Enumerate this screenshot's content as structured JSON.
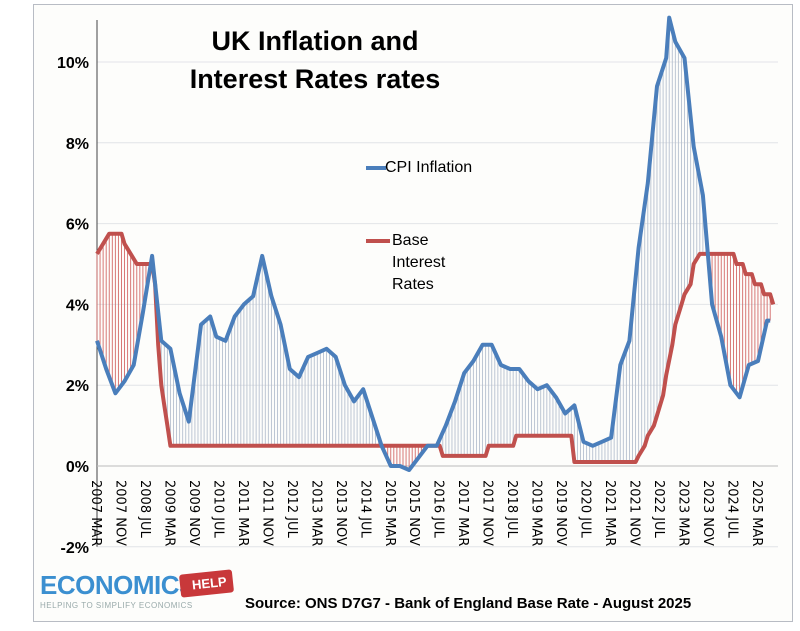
{
  "chart_data": {
    "type": "line",
    "title": "UK Inflation and Interest Rates rates",
    "xlabel": "",
    "ylabel": "",
    "ylim": [
      -2,
      11
    ],
    "y_ticks": [
      "-2%",
      "0%",
      "2%",
      "4%",
      "6%",
      "8%",
      "10%"
    ],
    "y_tick_values": [
      -2,
      0,
      2,
      4,
      6,
      8,
      10
    ],
    "x_ticks": [
      "2007 MAR",
      "2007 NOV",
      "2008 JUL",
      "2009 MAR",
      "2009 NOV",
      "2010 JUL",
      "2011 MAR",
      "2011 NOV",
      "2012 JUL",
      "2013 MAR",
      "2013 NOV",
      "2014 JUL",
      "2015 MAR",
      "2015 NOV",
      "2016 JUL",
      "2017 MAR",
      "2017 NOV",
      "2018 JUL",
      "2019 MAR",
      "2019 NOV",
      "2020 JUL",
      "2021 MAR",
      "2021 NOV",
      "2022 JUL",
      "2023 MAR",
      "2023 NOV",
      "2024 JUL",
      "2025 MAR"
    ],
    "grid": true,
    "legend_placement": "center-inside",
    "shading": "vertical hatching between series: red where base rate above CPI, blue-grey where CPI above base rate",
    "series": [
      {
        "name": "CPI Inflation",
        "color": "#4a7ebb",
        "points": [
          [
            "2007-03",
            3.1
          ],
          [
            "2007-06",
            2.4
          ],
          [
            "2007-09",
            1.8
          ],
          [
            "2007-12",
            2.1
          ],
          [
            "2008-03",
            2.5
          ],
          [
            "2008-06",
            3.8
          ],
          [
            "2008-09",
            5.2
          ],
          [
            "2008-12",
            3.1
          ],
          [
            "2009-03",
            2.9
          ],
          [
            "2009-06",
            1.8
          ],
          [
            "2009-09",
            1.1
          ],
          [
            "2009-12",
            2.9
          ],
          [
            "2010-01",
            3.5
          ],
          [
            "2010-04",
            3.7
          ],
          [
            "2010-06",
            3.2
          ],
          [
            "2010-09",
            3.1
          ],
          [
            "2010-12",
            3.7
          ],
          [
            "2011-03",
            4.0
          ],
          [
            "2011-06",
            4.2
          ],
          [
            "2011-09",
            5.2
          ],
          [
            "2011-12",
            4.2
          ],
          [
            "2012-03",
            3.5
          ],
          [
            "2012-06",
            2.4
          ],
          [
            "2012-09",
            2.2
          ],
          [
            "2012-12",
            2.7
          ],
          [
            "2013-03",
            2.8
          ],
          [
            "2013-06",
            2.9
          ],
          [
            "2013-09",
            2.7
          ],
          [
            "2013-12",
            2.0
          ],
          [
            "2014-03",
            1.6
          ],
          [
            "2014-06",
            1.9
          ],
          [
            "2014-09",
            1.2
          ],
          [
            "2014-12",
            0.5
          ],
          [
            "2015-03",
            0.0
          ],
          [
            "2015-06",
            0.0
          ],
          [
            "2015-09",
            -0.1
          ],
          [
            "2015-12",
            0.2
          ],
          [
            "2016-03",
            0.5
          ],
          [
            "2016-06",
            0.5
          ],
          [
            "2016-09",
            1.0
          ],
          [
            "2016-12",
            1.6
          ],
          [
            "2017-03",
            2.3
          ],
          [
            "2017-06",
            2.6
          ],
          [
            "2017-09",
            3.0
          ],
          [
            "2017-12",
            3.0
          ],
          [
            "2018-03",
            2.5
          ],
          [
            "2018-06",
            2.4
          ],
          [
            "2018-09",
            2.4
          ],
          [
            "2018-12",
            2.1
          ],
          [
            "2019-03",
            1.9
          ],
          [
            "2019-06",
            2.0
          ],
          [
            "2019-09",
            1.7
          ],
          [
            "2019-12",
            1.3
          ],
          [
            "2020-03",
            1.5
          ],
          [
            "2020-06",
            0.6
          ],
          [
            "2020-09",
            0.5
          ],
          [
            "2020-12",
            0.6
          ],
          [
            "2021-03",
            0.7
          ],
          [
            "2021-06",
            2.5
          ],
          [
            "2021-09",
            3.1
          ],
          [
            "2021-12",
            5.4
          ],
          [
            "2022-03",
            7.0
          ],
          [
            "2022-06",
            9.4
          ],
          [
            "2022-09",
            10.1
          ],
          [
            "2022-10",
            11.1
          ],
          [
            "2022-12",
            10.5
          ],
          [
            "2023-03",
            10.1
          ],
          [
            "2023-06",
            7.9
          ],
          [
            "2023-09",
            6.7
          ],
          [
            "2023-12",
            4.0
          ],
          [
            "2024-03",
            3.2
          ],
          [
            "2024-06",
            2.0
          ],
          [
            "2024-09",
            1.7
          ],
          [
            "2024-12",
            2.5
          ],
          [
            "2025-03",
            2.6
          ],
          [
            "2025-06",
            3.6
          ],
          [
            "2025-07",
            3.6
          ]
        ]
      },
      {
        "name": "Base Interest Rates",
        "color": "#c0504d",
        "points": [
          [
            "2007-03",
            5.25
          ],
          [
            "2007-05",
            5.5
          ],
          [
            "2007-07",
            5.75
          ],
          [
            "2007-11",
            5.75
          ],
          [
            "2007-12",
            5.5
          ],
          [
            "2008-02",
            5.25
          ],
          [
            "2008-04",
            5.0
          ],
          [
            "2008-09",
            5.0
          ],
          [
            "2008-10",
            4.5
          ],
          [
            "2008-11",
            3.0
          ],
          [
            "2008-12",
            2.0
          ],
          [
            "2009-01",
            1.5
          ],
          [
            "2009-02",
            1.0
          ],
          [
            "2009-03",
            0.5
          ],
          [
            "2016-07",
            0.5
          ],
          [
            "2016-08",
            0.25
          ],
          [
            "2017-10",
            0.25
          ],
          [
            "2017-11",
            0.5
          ],
          [
            "2018-07",
            0.5
          ],
          [
            "2018-08",
            0.75
          ],
          [
            "2020-02",
            0.75
          ],
          [
            "2020-03",
            0.1
          ],
          [
            "2021-11",
            0.1
          ],
          [
            "2021-12",
            0.25
          ],
          [
            "2022-02",
            0.5
          ],
          [
            "2022-03",
            0.75
          ],
          [
            "2022-05",
            1.0
          ],
          [
            "2022-06",
            1.25
          ],
          [
            "2022-08",
            1.75
          ],
          [
            "2022-09",
            2.25
          ],
          [
            "2022-11",
            3.0
          ],
          [
            "2022-12",
            3.5
          ],
          [
            "2023-02",
            4.0
          ],
          [
            "2023-03",
            4.25
          ],
          [
            "2023-05",
            4.5
          ],
          [
            "2023-06",
            5.0
          ],
          [
            "2023-08",
            5.25
          ],
          [
            "2024-07",
            5.25
          ],
          [
            "2024-08",
            5.0
          ],
          [
            "2024-10",
            5.0
          ],
          [
            "2024-11",
            4.75
          ],
          [
            "2025-01",
            4.75
          ],
          [
            "2025-02",
            4.5
          ],
          [
            "2025-04",
            4.5
          ],
          [
            "2025-05",
            4.25
          ],
          [
            "2025-07",
            4.25
          ],
          [
            "2025-08",
            4.0
          ]
        ]
      }
    ]
  },
  "legend": {
    "cpi_label": "CPI Inflation",
    "base_label_lines": [
      "Base",
      "Interest",
      "Rates"
    ]
  },
  "title_lines": [
    "UK Inflation and",
    "Interest Rates rates"
  ],
  "source": "Source: ONS D7G7 - Bank of England Base Rate - August 2025",
  "logo": {
    "main": "ECONOMICS",
    "tag": "HELP",
    "sub": "HELPING TO SIMPLIFY ECONOMICS"
  }
}
